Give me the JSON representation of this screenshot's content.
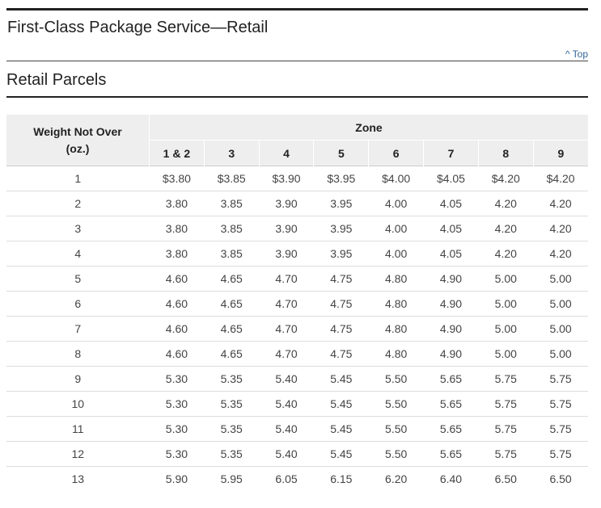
{
  "page_title": "First-Class Package Service—Retail",
  "top_link": "^ Top",
  "section_title": "Retail Parcels",
  "table": {
    "weight_header_line1": "Weight Not Over",
    "weight_header_line2": "(oz.)",
    "zone_header": "Zone",
    "zones": [
      "1 & 2",
      "3",
      "4",
      "5",
      "6",
      "7",
      "8",
      "9"
    ],
    "rows": [
      {
        "weight": "1",
        "prices": [
          "$3.80",
          "$3.85",
          "$3.90",
          "$3.95",
          "$4.00",
          "$4.05",
          "$4.20",
          "$4.20"
        ]
      },
      {
        "weight": "2",
        "prices": [
          "3.80",
          "3.85",
          "3.90",
          "3.95",
          "4.00",
          "4.05",
          "4.20",
          "4.20"
        ]
      },
      {
        "weight": "3",
        "prices": [
          "3.80",
          "3.85",
          "3.90",
          "3.95",
          "4.00",
          "4.05",
          "4.20",
          "4.20"
        ]
      },
      {
        "weight": "4",
        "prices": [
          "3.80",
          "3.85",
          "3.90",
          "3.95",
          "4.00",
          "4.05",
          "4.20",
          "4.20"
        ]
      },
      {
        "weight": "5",
        "prices": [
          "4.60",
          "4.65",
          "4.70",
          "4.75",
          "4.80",
          "4.90",
          "5.00",
          "5.00"
        ]
      },
      {
        "weight": "6",
        "prices": [
          "4.60",
          "4.65",
          "4.70",
          "4.75",
          "4.80",
          "4.90",
          "5.00",
          "5.00"
        ]
      },
      {
        "weight": "7",
        "prices": [
          "4.60",
          "4.65",
          "4.70",
          "4.75",
          "4.80",
          "4.90",
          "5.00",
          "5.00"
        ]
      },
      {
        "weight": "8",
        "prices": [
          "4.60",
          "4.65",
          "4.70",
          "4.75",
          "4.80",
          "4.90",
          "5.00",
          "5.00"
        ]
      },
      {
        "weight": "9",
        "prices": [
          "5.30",
          "5.35",
          "5.40",
          "5.45",
          "5.50",
          "5.65",
          "5.75",
          "5.75"
        ]
      },
      {
        "weight": "10",
        "prices": [
          "5.30",
          "5.35",
          "5.40",
          "5.45",
          "5.50",
          "5.65",
          "5.75",
          "5.75"
        ]
      },
      {
        "weight": "11",
        "prices": [
          "5.30",
          "5.35",
          "5.40",
          "5.45",
          "5.50",
          "5.65",
          "5.75",
          "5.75"
        ]
      },
      {
        "weight": "12",
        "prices": [
          "5.30",
          "5.35",
          "5.40",
          "5.45",
          "5.50",
          "5.65",
          "5.75",
          "5.75"
        ]
      },
      {
        "weight": "13",
        "prices": [
          "5.90",
          "5.95",
          "6.05",
          "6.15",
          "6.20",
          "6.40",
          "6.50",
          "6.50"
        ]
      }
    ]
  }
}
